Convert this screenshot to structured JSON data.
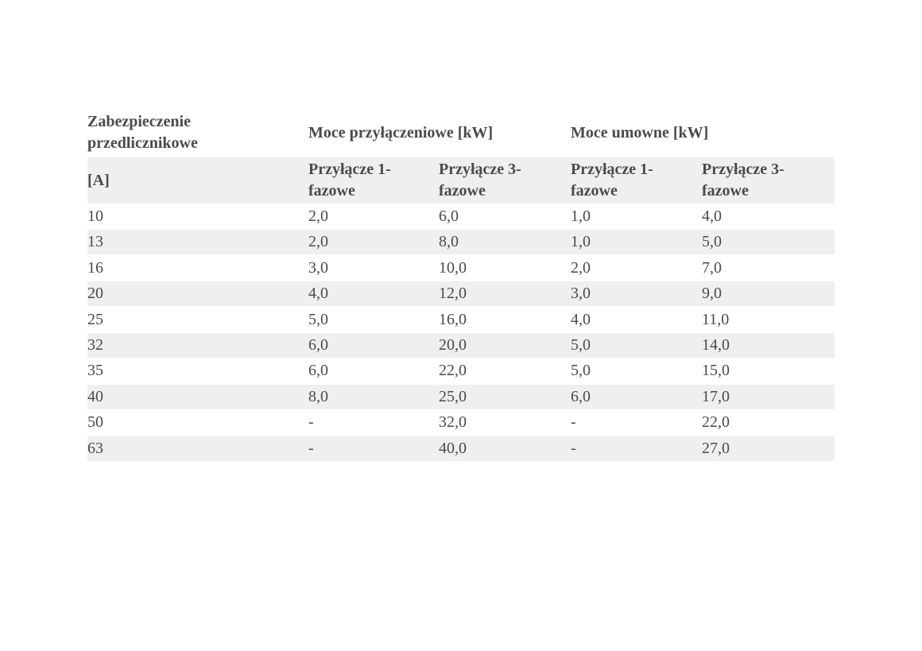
{
  "table": {
    "header": [
      [
        "Zabezpieczenie przedlicznikowe",
        "Moce przyłączeniowe [kW]",
        "Moce umowne [kW]"
      ],
      [
        "[A]",
        "Przyłącze 1-fazowe",
        "Przyłącze 3-fazowe",
        "Przyłącze 1-fazowe",
        "Przyłącze 3-fazowe"
      ]
    ],
    "rows": [
      [
        "10",
        "2,0",
        "6,0",
        "1,0",
        "4,0"
      ],
      [
        "13",
        "2,0",
        "8,0",
        "1,0",
        "5,0"
      ],
      [
        "16",
        "3,0",
        "10,0",
        "2,0",
        "7,0"
      ],
      [
        "20",
        "4,0",
        "12,0",
        "3,0",
        "9,0"
      ],
      [
        "25",
        "5,0",
        "16,0",
        "4,0",
        "11,0"
      ],
      [
        "32",
        "6,0",
        "20,0",
        "5,0",
        "14,0"
      ],
      [
        "35",
        "6,0",
        "22,0",
        "5,0",
        "15,0"
      ],
      [
        "40",
        "8,0",
        "25,0",
        "6,0",
        "17,0"
      ],
      [
        "50",
        "-",
        "32,0",
        "-",
        "22,0"
      ],
      [
        "63",
        "-",
        "40,0",
        "-",
        "27,0"
      ]
    ]
  }
}
